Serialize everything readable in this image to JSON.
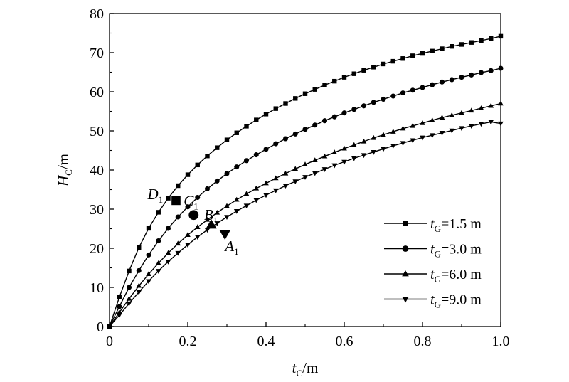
{
  "chart_data": {
    "type": "line",
    "title": "",
    "xlabel": {
      "main": "t",
      "sub": "C",
      "unit": "/m"
    },
    "ylabel": {
      "main": "H",
      "sub": "C",
      "unit": "/m"
    },
    "xlim": [
      0,
      1.0
    ],
    "ylim": [
      0,
      80
    ],
    "xticks": [
      "0",
      "0.2",
      "0.4",
      "0.6",
      "0.8",
      "1.0"
    ],
    "yticks": [
      "0",
      "10",
      "20",
      "30",
      "40",
      "50",
      "60",
      "70",
      "80"
    ],
    "grid": false,
    "legend_position": "bottom-right",
    "x": [
      0,
      0.025,
      0.05,
      0.075,
      0.1,
      0.125,
      0.15,
      0.175,
      0.2,
      0.225,
      0.25,
      0.275,
      0.3,
      0.325,
      0.35,
      0.375,
      0.4,
      0.425,
      0.45,
      0.475,
      0.5,
      0.525,
      0.55,
      0.575,
      0.6,
      0.625,
      0.65,
      0.675,
      0.7,
      0.725,
      0.75,
      0.775,
      0.8,
      0.825,
      0.85,
      0.875,
      0.9,
      0.925,
      0.95,
      0.975,
      1.0
    ],
    "series": [
      {
        "name": {
          "var": "t",
          "sub": "G",
          "value": "=1.5 m"
        },
        "marker": "square",
        "values": [
          0,
          7.5,
          14.2,
          20.2,
          25.1,
          29.2,
          32.8,
          36.0,
          38.8,
          41.3,
          43.6,
          45.7,
          47.7,
          49.5,
          51.2,
          52.8,
          54.3,
          55.7,
          57.0,
          58.3,
          59.5,
          60.6,
          61.7,
          62.7,
          63.7,
          64.6,
          65.5,
          66.3,
          67.1,
          67.8,
          68.5,
          69.2,
          69.8,
          70.4,
          71.0,
          71.6,
          72.1,
          72.6,
          73.1,
          73.6,
          74.2
        ]
      },
      {
        "name": {
          "var": "t",
          "sub": "G",
          "value": "=3.0 m"
        },
        "marker": "circle",
        "values": [
          0,
          5.1,
          10.0,
          14.3,
          18.3,
          21.9,
          25.1,
          28.0,
          30.6,
          33.0,
          35.2,
          37.2,
          39.1,
          40.8,
          42.4,
          43.9,
          45.3,
          46.7,
          48.0,
          49.2,
          50.4,
          51.5,
          52.6,
          53.6,
          54.6,
          55.5,
          56.4,
          57.3,
          58.1,
          58.9,
          59.7,
          60.4,
          61.1,
          61.8,
          62.5,
          63.1,
          63.7,
          64.3,
          64.9,
          65.4,
          66.0
        ]
      },
      {
        "name": {
          "var": "t",
          "sub": "G",
          "value": "=6.0 m"
        },
        "marker": "triangle-up",
        "values": [
          0,
          3.6,
          7.1,
          10.4,
          13.4,
          16.2,
          18.8,
          21.2,
          23.4,
          25.4,
          27.3,
          29.1,
          30.8,
          32.4,
          33.9,
          35.3,
          36.6,
          37.9,
          39.1,
          40.3,
          41.4,
          42.5,
          43.5,
          44.5,
          45.5,
          46.4,
          47.3,
          48.2,
          49.0,
          49.8,
          50.6,
          51.3,
          52.0,
          52.7,
          53.4,
          54.0,
          54.6,
          55.2,
          55.8,
          56.4,
          57.0
        ]
      },
      {
        "name": {
          "var": "t",
          "sub": "G",
          "value": "=9.0 m"
        },
        "marker": "triangle-down",
        "values": [
          0,
          2.9,
          5.9,
          8.8,
          11.6,
          14.2,
          16.6,
          18.8,
          20.9,
          22.9,
          24.7,
          26.4,
          28.0,
          29.5,
          30.9,
          32.3,
          33.6,
          34.8,
          36.0,
          37.1,
          38.2,
          39.2,
          40.2,
          41.2,
          42.1,
          43.0,
          43.8,
          44.6,
          45.4,
          46.2,
          46.9,
          47.6,
          48.3,
          48.9,
          49.5,
          50.1,
          50.7,
          51.3,
          51.8,
          52.3,
          51.9
        ]
      }
    ],
    "annotations": [
      {
        "main": "D",
        "sub": "1",
        "x": 0.17,
        "y": 32.2,
        "marker": "square"
      },
      {
        "main": "C",
        "sub": "1",
        "x": 0.215,
        "y": 28.5,
        "marker": "circle"
      },
      {
        "main": "B",
        "sub": "1",
        "x": 0.26,
        "y": 26.0,
        "marker": "triangle-up"
      },
      {
        "main": "A",
        "sub": "1",
        "x": 0.295,
        "y": 23.6,
        "marker": "triangle-down"
      }
    ]
  }
}
